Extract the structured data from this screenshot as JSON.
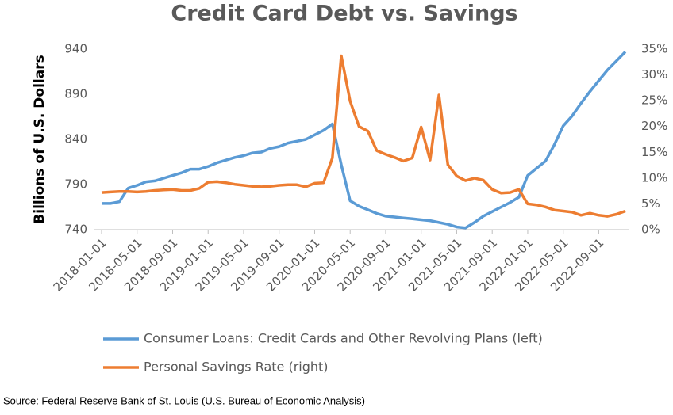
{
  "chart_data": {
    "type": "line",
    "title": "Credit Card Debt vs. Savings",
    "y_label": "Billions of U.S. Dollars",
    "source": "Source: Federal Reserve Bank of St. Louis (U.S. Bureau of Economic Analysis)",
    "x": [
      "2018-01-01",
      "2018-02-01",
      "2018-03-01",
      "2018-04-01",
      "2018-05-01",
      "2018-06-01",
      "2018-07-01",
      "2018-08-01",
      "2018-09-01",
      "2018-10-01",
      "2018-11-01",
      "2018-12-01",
      "2019-01-01",
      "2019-02-01",
      "2019-03-01",
      "2019-04-01",
      "2019-05-01",
      "2019-06-01",
      "2019-07-01",
      "2019-08-01",
      "2019-09-01",
      "2019-10-01",
      "2019-11-01",
      "2019-12-01",
      "2020-01-01",
      "2020-02-01",
      "2020-03-01",
      "2020-04-01",
      "2020-05-01",
      "2020-06-01",
      "2020-07-01",
      "2020-08-01",
      "2020-09-01",
      "2020-10-01",
      "2020-11-01",
      "2020-12-01",
      "2021-01-01",
      "2021-02-01",
      "2021-03-01",
      "2021-04-01",
      "2021-05-01",
      "2021-06-01",
      "2021-07-01",
      "2021-08-01",
      "2021-09-01",
      "2021-10-01",
      "2021-11-01",
      "2021-12-01",
      "2022-01-01",
      "2022-02-01",
      "2022-03-01",
      "2022-04-01",
      "2022-05-01",
      "2022-06-01",
      "2022-07-01",
      "2022-08-01",
      "2022-09-01",
      "2022-10-01",
      "2022-11-01",
      "2022-12-01"
    ],
    "xlim": [
      "2018-01-01",
      "2022-12-01"
    ],
    "xticks": [
      "2018-01-01",
      "2018-05-01",
      "2018-09-01",
      "2019-01-01",
      "2019-05-01",
      "2019-09-01",
      "2020-01-01",
      "2020-05-01",
      "2020-09-01",
      "2021-01-01",
      "2021-05-01",
      "2021-09-01",
      "2022-01-01",
      "2022-05-01",
      "2022-09-01"
    ],
    "ylim": [
      740,
      940
    ],
    "yticks": [
      740,
      790,
      840,
      890,
      940
    ],
    "y2lim": [
      0,
      35
    ],
    "y2ticks": [
      {
        "value": 0,
        "label": "0%"
      },
      {
        "value": 5,
        "label": "5%"
      },
      {
        "value": 10,
        "label": "10%"
      },
      {
        "value": 15,
        "label": "15%"
      },
      {
        "value": 20,
        "label": "20%"
      },
      {
        "value": 25,
        "label": "25%"
      },
      {
        "value": 30,
        "label": "30%"
      },
      {
        "value": 35,
        "label": "35%"
      }
    ],
    "series": [
      {
        "name": "Consumer Loans: Credit Cards and Other Revolving Plans (left)",
        "color": "#5b9bd5",
        "axis": "y",
        "values": [
          769,
          769,
          771,
          786,
          789,
          793,
          794,
          797,
          800,
          803,
          807,
          807,
          810,
          814,
          817,
          820,
          822,
          825,
          826,
          830,
          832,
          836,
          838,
          840,
          845,
          850,
          857,
          812,
          772,
          766,
          762,
          758,
          755,
          754,
          753,
          752,
          751,
          750,
          748,
          746,
          743,
          742,
          748,
          755,
          760,
          765,
          770,
          776,
          800,
          808,
          816,
          834,
          855,
          866,
          880,
          893,
          905,
          917,
          927,
          937
        ]
      },
      {
        "name": "Personal Savings Rate (right)",
        "color": "#ed7d31",
        "axis": "y2",
        "values": [
          7.2,
          7.3,
          7.4,
          7.4,
          7.3,
          7.4,
          7.6,
          7.7,
          7.8,
          7.6,
          7.6,
          8.0,
          9.2,
          9.3,
          9.1,
          8.8,
          8.6,
          8.4,
          8.3,
          8.4,
          8.6,
          8.7,
          8.7,
          8.3,
          9.0,
          9.1,
          13.9,
          33.7,
          24.9,
          20.0,
          19.1,
          15.3,
          14.6,
          14.0,
          13.3,
          13.9,
          19.9,
          13.5,
          26.1,
          12.6,
          10.4,
          9.5,
          10.0,
          9.6,
          7.8,
          7.1,
          7.2,
          7.8,
          5.0,
          4.8,
          4.4,
          3.8,
          3.6,
          3.4,
          2.8,
          3.2,
          2.8,
          2.6,
          3.0,
          3.6
        ]
      }
    ]
  }
}
